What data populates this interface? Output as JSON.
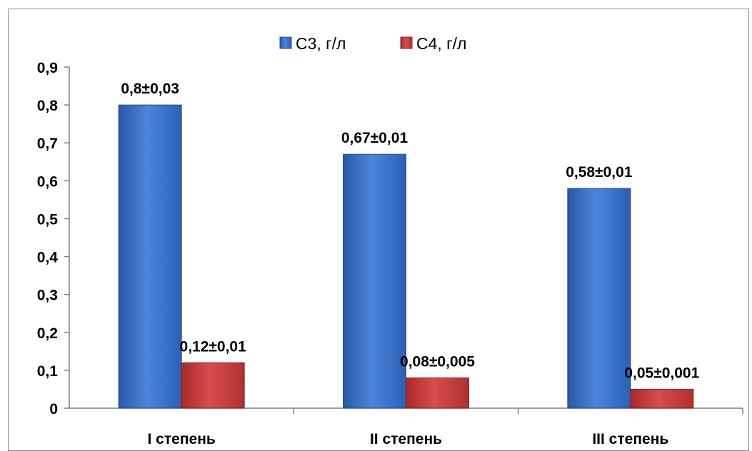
{
  "chart_data": {
    "type": "bar",
    "categories": [
      "I степень",
      "II степень",
      "III степень"
    ],
    "series": [
      {
        "name": "С3, г/л",
        "color": "#3a6fc4",
        "values": [
          0.8,
          0.67,
          0.58
        ],
        "labels": [
          "0,8±0,03",
          "0,67±0,01",
          "0,58±0,01"
        ]
      },
      {
        "name": "С4, г/л",
        "color": "#c43a3a",
        "values": [
          0.12,
          0.08,
          0.05
        ],
        "labels": [
          "0,12±0,01",
          "0,08±0,005",
          "0,05±0,001"
        ]
      }
    ],
    "ylim": [
      0,
      0.9
    ],
    "yticks": [
      0,
      0.1,
      0.2,
      0.3,
      0.4,
      0.5,
      0.6,
      0.7,
      0.8,
      0.9
    ],
    "ytick_labels": [
      "0",
      "0,1",
      "0,2",
      "0,3",
      "0,4",
      "0,5",
      "0,6",
      "0,7",
      "0,8",
      "0,9"
    ],
    "legend_position": "top",
    "grid": false,
    "title": "",
    "xlabel": "",
    "ylabel": ""
  }
}
